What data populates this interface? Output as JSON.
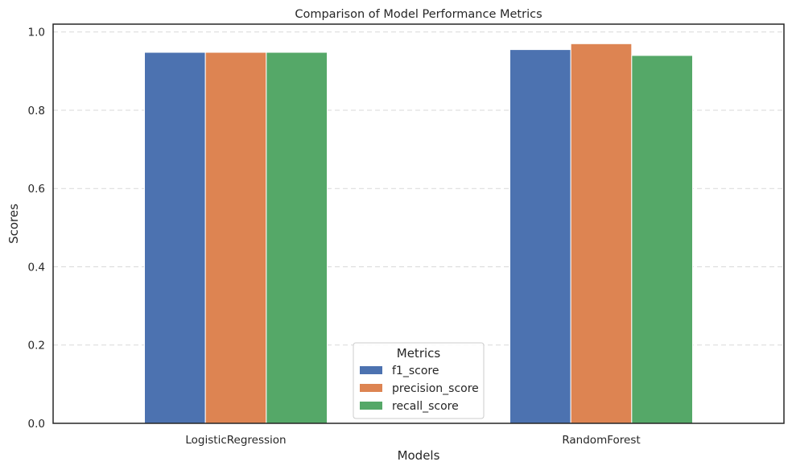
{
  "chart_data": {
    "type": "bar",
    "title": "Comparison of Model Performance Metrics",
    "xlabel": "Models",
    "ylabel": "Scores",
    "categories": [
      "LogisticRegression",
      "RandomForest"
    ],
    "series": [
      {
        "name": "f1_score",
        "values": [
          0.948,
          0.955
        ],
        "color": "#4c72b0"
      },
      {
        "name": "precision_score",
        "values": [
          0.948,
          0.97
        ],
        "color": "#dd8452"
      },
      {
        "name": "recall_score",
        "values": [
          0.948,
          0.94
        ],
        "color": "#55a868"
      }
    ],
    "ylim": [
      0,
      1.02
    ],
    "yticks": [
      "0.0",
      "0.2",
      "0.4",
      "0.6",
      "0.8",
      "1.0"
    ],
    "grid": "y-dashed",
    "legend": {
      "title": "Metrics",
      "placement": "bottom-center"
    }
  }
}
